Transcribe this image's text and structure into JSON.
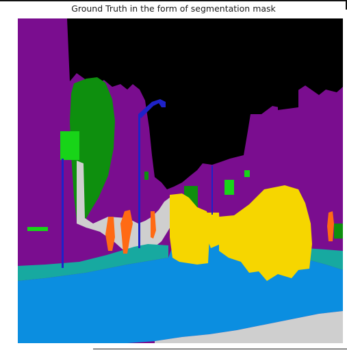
{
  "title": "Ground Truth in the form of segmentation mask",
  "colors": {
    "sky": "#000000",
    "building": "#7a0d8f",
    "vegetation": "#0e8f0e",
    "road": "#0b8ee0",
    "sidewalk": "#cfcfcf",
    "car": "#f6d600",
    "person": "#ff6a14",
    "pole": "#1e22c8",
    "terrain": "#17a9a0",
    "sign": "#18d418"
  }
}
